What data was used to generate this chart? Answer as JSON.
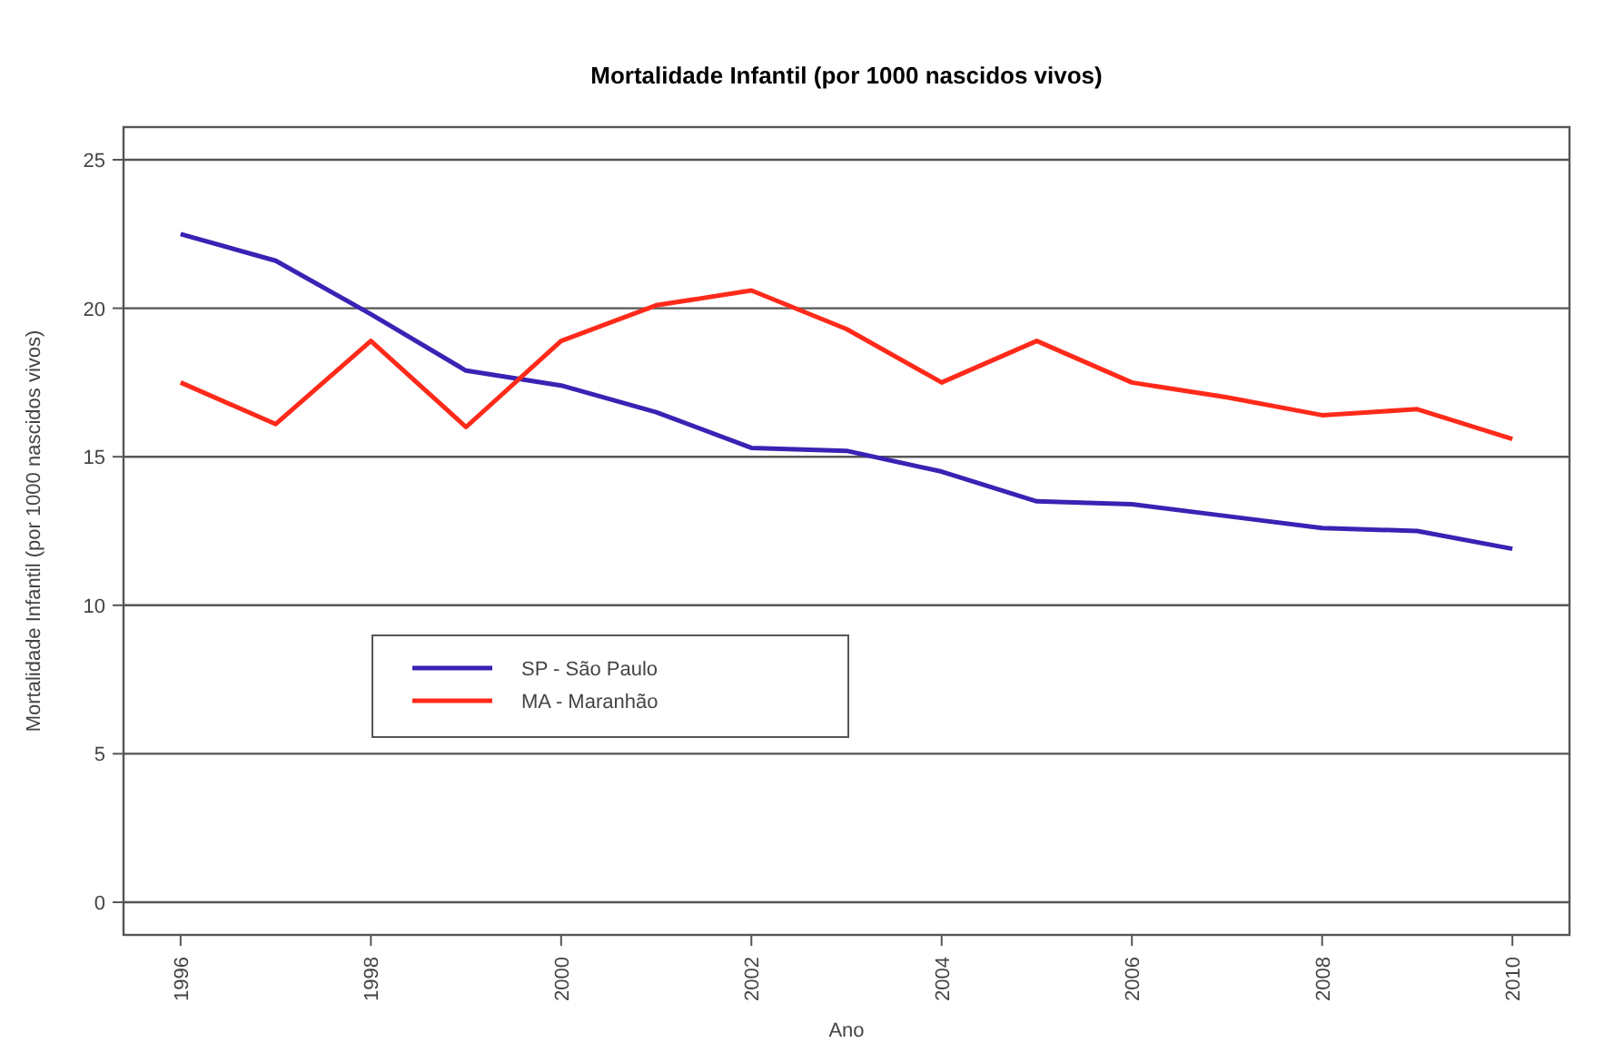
{
  "chart_data": {
    "type": "line",
    "title": "Mortalidade Infantil (por 1000 nascidos vivos)",
    "xlabel": "Ano",
    "ylabel": "Mortalidade Infantil (por 1000 nascidos vivos)",
    "x": [
      1996,
      1997,
      1998,
      1999,
      2000,
      2001,
      2002,
      2003,
      2004,
      2005,
      2006,
      2007,
      2008,
      2009,
      2010
    ],
    "series": [
      {
        "name": "SP - São Paulo",
        "color": "#3a22b4",
        "values": [
          22.5,
          21.6,
          19.8,
          17.9,
          17.4,
          16.5,
          15.3,
          15.2,
          14.5,
          13.5,
          13.4,
          13.0,
          12.6,
          12.5,
          11.9
        ]
      },
      {
        "name": "MA - Maranhão",
        "color": "#ff2a1a",
        "values": [
          17.5,
          16.1,
          18.9,
          16.0,
          18.9,
          20.1,
          20.6,
          19.3,
          17.5,
          18.9,
          17.5,
          17.0,
          16.4,
          16.6,
          15.6
        ]
      }
    ],
    "xlim": [
      1995.4,
      2010.6
    ],
    "xticks": [
      1996,
      1998,
      2000,
      2002,
      2004,
      2006,
      2008,
      2010
    ],
    "ylim": [
      -1.1,
      26.1
    ],
    "yticks": [
      0,
      5,
      10,
      15,
      20,
      25
    ],
    "grid": "y",
    "legend": "left",
    "marker": "none",
    "line_style": "solid"
  }
}
